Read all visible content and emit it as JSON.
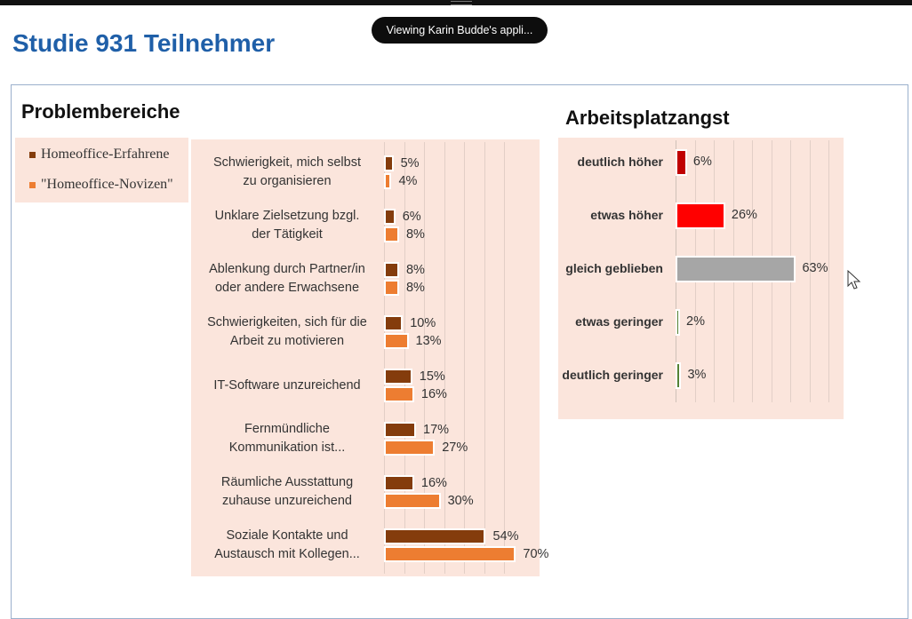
{
  "viewing_banner": "Viewing Karin Budde's appli...",
  "page_title": "Studie 931 Teilnehmer",
  "colors": {
    "title_blue": "#1f5fa8",
    "panel_bg": "#fbe5dc",
    "experienced": "#843c0c",
    "novices": "#ed7d31",
    "much_higher": "#c00000",
    "higher": "#ff0000",
    "same": "#a6a6a6",
    "lower": "#548235"
  },
  "chart_data": [
    {
      "type": "bar",
      "orientation": "horizontal",
      "title": "Problembereiche",
      "categories": [
        [
          "Schwierigkeit, mich selbst",
          "zu organisieren"
        ],
        [
          "Unklare Zielsetzung bzgl.",
          "der Tätigkeit"
        ],
        [
          "Ablenkung durch Partner/in",
          "oder andere Erwachsene"
        ],
        [
          "Schwierigkeiten, sich für die",
          "Arbeit zu motivieren"
        ],
        [
          "IT-Software unzureichend"
        ],
        [
          "Fernmündliche",
          "Kommunikation ist..."
        ],
        [
          "Räumliche Ausstattung",
          "zuhause unzureichend"
        ],
        [
          "Soziale Kontakte und",
          "Austausch mit Kollegen..."
        ]
      ],
      "series": [
        {
          "name": "Homeoffice-Erfahrene",
          "values": [
            5,
            6,
            8,
            10,
            15,
            17,
            16,
            54
          ],
          "labels": [
            "5%",
            "6%",
            "8%",
            "10%",
            "15%",
            "17%",
            "16%",
            "54%"
          ]
        },
        {
          "name": "\"Homeoffice-Novizen\"",
          "values": [
            4,
            8,
            8,
            13,
            16,
            27,
            30,
            70
          ],
          "labels": [
            "4%",
            "8%",
            "8%",
            "13%",
            "16%",
            "27%",
            "30%",
            "70%"
          ]
        }
      ],
      "xlim": [
        0,
        70
      ],
      "unit": "%",
      "grid": true,
      "legend_position": "left"
    },
    {
      "type": "bar",
      "orientation": "horizontal",
      "title": "Arbeitsplatzangst",
      "categories": [
        "deutlich höher",
        "etwas höher",
        "gleich geblieben",
        "etwas geringer",
        "deutlich geringer"
      ],
      "values": [
        6,
        26,
        63,
        2,
        3
      ],
      "labels": [
        "6%",
        "26%",
        "63%",
        "2%",
        "3%"
      ],
      "xlim": [
        0,
        80
      ],
      "unit": "%",
      "grid": true
    }
  ]
}
